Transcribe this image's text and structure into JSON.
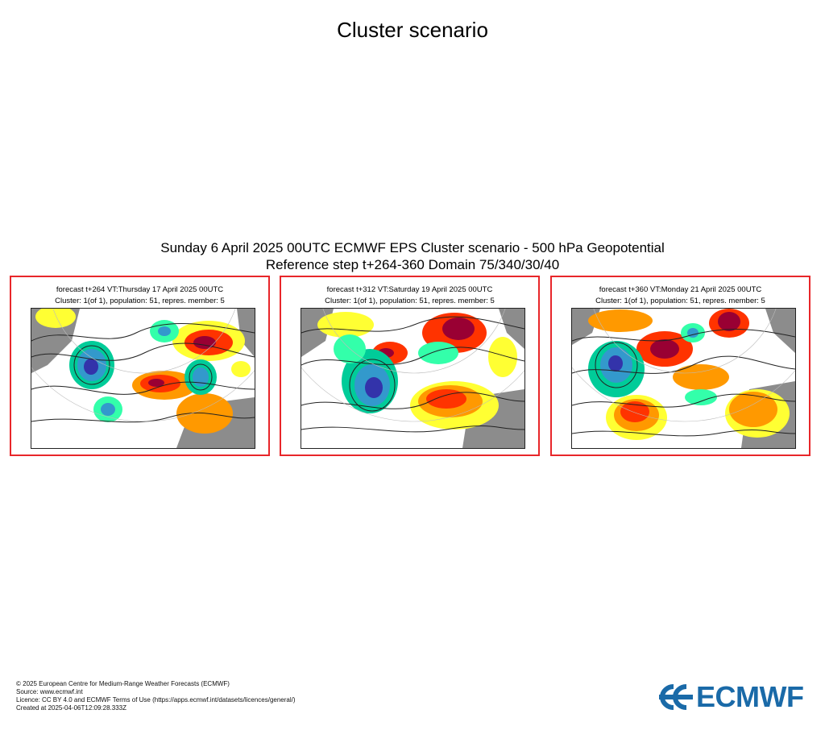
{
  "page": {
    "title": "Cluster scenario"
  },
  "figure": {
    "title_line1": "Sunday 6 April 2025 00UTC ECMWF EPS Cluster scenario - 500 hPa Geopotential",
    "title_line2": "Reference step t+264-360 Domain 75/340/30/40"
  },
  "panels": [
    {
      "line1": "forecast t+264 VT:Thursday 17 April 2025 00UTC",
      "line2": "Cluster: 1(of 1), population: 51, repres. member: 5"
    },
    {
      "line1": "forecast t+312 VT:Saturday 19 April 2025 00UTC",
      "line2": "Cluster: 1(of 1), population: 51, repres. member: 5"
    },
    {
      "line1": "forecast t+360 VT:Monday 21 April 2025 00UTC",
      "line2": "Cluster: 1(of 1), population: 51, repres. member: 5"
    }
  ],
  "colors": {
    "panel_border": "#e8262a",
    "land": "#8c8c8c",
    "anomaly_positive": [
      "#ffff33",
      "#ff9900",
      "#ff3300",
      "#990033"
    ],
    "anomaly_negative": [
      "#33ffaa",
      "#00cc99",
      "#3399cc",
      "#3333aa"
    ],
    "logo": "#1a6aa8"
  },
  "footer": {
    "copyright": "© 2025 European Centre for Medium-Range Weather Forecasts (ECMWF)",
    "source": "Source: www.ecmwf.int",
    "licence": "Licence: CC BY 4.0 and ECMWF Terms of Use (https://apps.ecmwf.int/datasets/licences/general/)",
    "created": "Created at 2025-04-06T12:09:28.333Z"
  },
  "logo": {
    "text": "ECMWF",
    "icon": "ecmwf-logo-icon"
  }
}
